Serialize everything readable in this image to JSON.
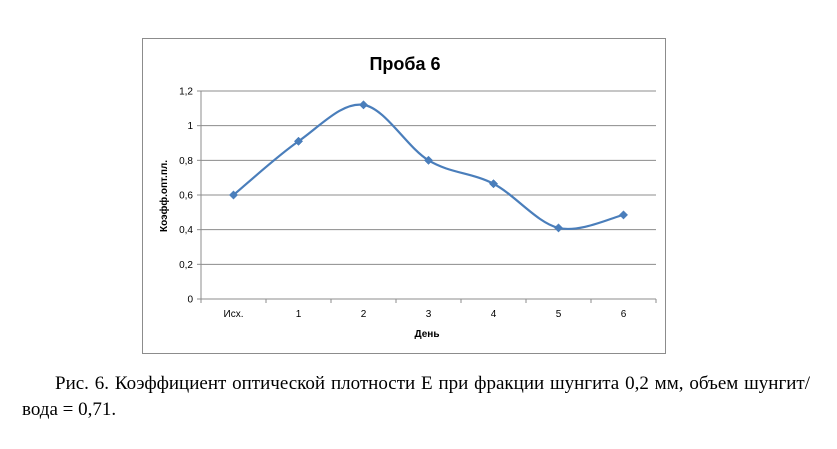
{
  "chart_data": {
    "type": "line",
    "title": "Проба 6",
    "xlabel": "День",
    "ylabel": "Коэфф.опт.пл.",
    "categories": [
      "Исх.",
      "1",
      "2",
      "3",
      "4",
      "5",
      "6"
    ],
    "series": [
      {
        "values": [
          0.6,
          0.91,
          1.12,
          0.8,
          0.665,
          0.41,
          0.485
        ],
        "color": "#4a7ebb"
      }
    ],
    "ylim": [
      0,
      1.2
    ],
    "yticks": [
      0,
      0.2,
      0.4,
      0.6,
      0.8,
      1,
      1.2
    ],
    "ytick_labels": [
      "0",
      "0,2",
      "0,4",
      "0,6",
      "0,8",
      "1",
      "1,2"
    ],
    "grid": true,
    "smooth": true,
    "marker": "diamond"
  },
  "caption": "Рис. 6. Коэффициент оптической плотности E при фракции шунгита 0,2 мм, объем шунгит/вода = 0,71."
}
